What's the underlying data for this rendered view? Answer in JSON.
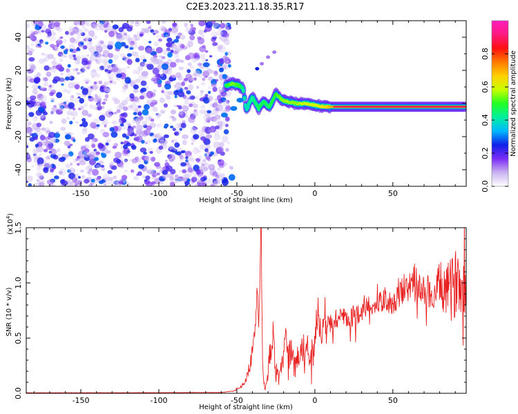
{
  "title": "C2E3.2023.211.18.35.R17",
  "chart_data": [
    {
      "type": "heatmap",
      "description_role": "spectrogram",
      "xlabel": "Height of straight line (km)",
      "ylabel": "Frequency (Hz)",
      "xlim": [
        -185,
        97
      ],
      "ylim": [
        -50,
        50
      ],
      "xticks": [
        -150,
        -100,
        -50,
        0,
        50
      ],
      "yticks": [
        -40,
        -20,
        0,
        20,
        40
      ],
      "colorbar": {
        "label": "Normalized spectral amplitude",
        "range": [
          0.0,
          1.0
        ],
        "ticks": [
          0.0,
          0.2,
          0.4,
          0.6,
          0.8
        ],
        "colormap": [
          "#ffffff",
          "#c9b3f0",
          "#7a2cf5",
          "#1020e8",
          "#00b7ff",
          "#00f0a0",
          "#22ff22",
          "#c8ff00",
          "#ffd000",
          "#ff7a00",
          "#ff1010",
          "#ff1a80",
          "#ff1dbd"
        ]
      },
      "noise_region": {
        "x_from": -185,
        "x_to": -55,
        "amplitude": [
          0.05,
          0.3
        ]
      },
      "signal_track": [
        {
          "x": -57,
          "freq": 11,
          "amplitude": 0.55
        },
        {
          "x": -53,
          "freq": 12,
          "amplitude": 0.65
        },
        {
          "x": -49,
          "freq": 11,
          "amplitude": 0.6
        },
        {
          "x": -46,
          "freq": 9,
          "amplitude": 0.5
        },
        {
          "x": -44,
          "freq": -4,
          "amplitude": 0.45
        },
        {
          "x": -40,
          "freq": 4,
          "amplitude": 0.5
        },
        {
          "x": -36,
          "freq": -3,
          "amplitude": 0.55
        },
        {
          "x": -33,
          "freq": 1,
          "amplitude": 0.55
        },
        {
          "x": -29,
          "freq": -2,
          "amplitude": 0.55
        },
        {
          "x": -25,
          "freq": 6,
          "amplitude": 0.6
        },
        {
          "x": -21,
          "freq": 2,
          "amplitude": 0.65
        },
        {
          "x": -17,
          "freq": 1,
          "amplitude": 0.65
        },
        {
          "x": -12,
          "freq": 0,
          "amplitude": 0.65
        },
        {
          "x": -6,
          "freq": 0,
          "amplitude": 0.7
        },
        {
          "x": 0,
          "freq": -1,
          "amplitude": 0.7
        },
        {
          "x": 6,
          "freq": -2,
          "amplitude": 0.75
        },
        {
          "x": 12,
          "freq": -2,
          "amplitude": 0.85
        },
        {
          "x": 20,
          "freq": -2,
          "amplitude": 0.88
        },
        {
          "x": 30,
          "freq": -2,
          "amplitude": 0.9
        },
        {
          "x": 40,
          "freq": -2,
          "amplitude": 0.9
        },
        {
          "x": 50,
          "freq": -2,
          "amplitude": 0.9
        },
        {
          "x": 60,
          "freq": -2,
          "amplitude": 0.9
        },
        {
          "x": 70,
          "freq": -2,
          "amplitude": 0.9
        },
        {
          "x": 80,
          "freq": -2,
          "amplitude": 0.9
        },
        {
          "x": 90,
          "freq": -2,
          "amplitude": 0.9
        },
        {
          "x": 97,
          "freq": -2,
          "amplitude": 0.9
        }
      ],
      "secondary_track": [
        {
          "x": -58,
          "freq": -7
        },
        {
          "x": -52,
          "freq": -3
        },
        {
          "x": -48,
          "freq": 2
        }
      ],
      "faint_streak": [
        {
          "x": -37,
          "freq": 21
        },
        {
          "x": -34,
          "freq": 24
        },
        {
          "x": -30,
          "freq": 28
        },
        {
          "x": -26,
          "freq": 31
        }
      ]
    },
    {
      "type": "line",
      "xlabel": "Height of straight line (km)",
      "ylabel": "SNR (10 * v/v)",
      "multiplier_label": "(x10",
      "multiplier_exponent": "4",
      "xlim": [
        -185,
        97
      ],
      "ylim": [
        0,
        1.5
      ],
      "xticks": [
        -150,
        -100,
        -50,
        0,
        50
      ],
      "yticks": [
        0.0,
        0.5,
        1.0,
        1.5
      ],
      "ytick_labels": [
        "0.0",
        "0.5",
        "1.0",
        "1.5"
      ],
      "color": "#e82020",
      "series": [
        {
          "x": [
            -185,
            -120,
            -60,
            -52,
            -48,
            -44,
            -41,
            -39,
            -37,
            -36,
            -35.2,
            -34.5,
            -34,
            -33.5,
            -32.5,
            -31,
            -29,
            -27,
            -25,
            -23,
            -21,
            -19,
            -17,
            -15,
            -13,
            -11,
            -9,
            -7,
            -5,
            -3,
            -1,
            1,
            4,
            8,
            12,
            16,
            20,
            25,
            30,
            35,
            40,
            45,
            50,
            55,
            60,
            64,
            68,
            72,
            76,
            80,
            84,
            88,
            92,
            97
          ],
          "y": [
            0.005,
            0.005,
            0.008,
            0.02,
            0.05,
            0.12,
            0.3,
            0.5,
            0.8,
            0.6,
            1.05,
            1.5,
            0.7,
            0.3,
            0.1,
            0.05,
            0.35,
            0.55,
            0.2,
            0.1,
            0.25,
            0.5,
            0.3,
            0.45,
            0.2,
            0.35,
            0.4,
            0.3,
            0.45,
            0.35,
            0.4,
            0.65,
            0.55,
            0.6,
            0.65,
            0.7,
            0.65,
            0.7,
            0.75,
            0.8,
            0.8,
            0.85,
            0.8,
            0.9,
            0.95,
            1.05,
            0.9,
            0.95,
            0.85,
            1.0,
            0.9,
            0.95,
            1.05,
            0.95
          ],
          "noise_amplitude": [
            0.001,
            0.001,
            0.002,
            0.005,
            0.01,
            0.03,
            0.08,
            0.1,
            0.2,
            0.15,
            0.1,
            0.05,
            0.15,
            0.1,
            0.05,
            0.05,
            0.12,
            0.15,
            0.12,
            0.08,
            0.1,
            0.15,
            0.15,
            0.15,
            0.12,
            0.12,
            0.15,
            0.15,
            0.15,
            0.15,
            0.15,
            0.12,
            0.12,
            0.12,
            0.12,
            0.12,
            0.1,
            0.1,
            0.1,
            0.1,
            0.1,
            0.1,
            0.1,
            0.12,
            0.12,
            0.15,
            0.15,
            0.15,
            0.15,
            0.2,
            0.25,
            0.3,
            0.3,
            0.25
          ]
        }
      ]
    }
  ]
}
